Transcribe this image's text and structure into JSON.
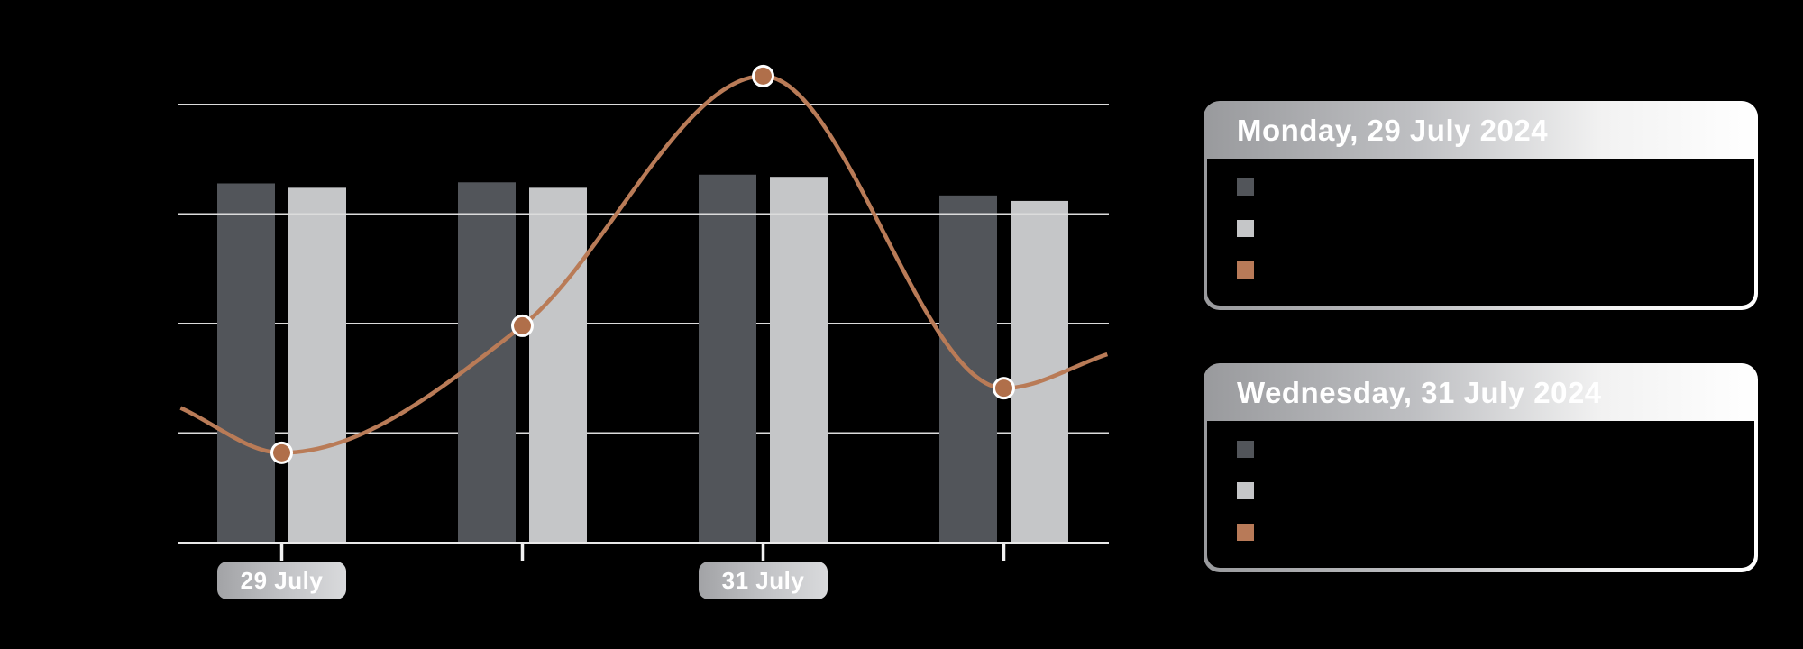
{
  "background": "#000000",
  "chart_data": {
    "type": "combo",
    "title": "",
    "x_tick_labels": [
      "29 July",
      "",
      "31 July",
      ""
    ],
    "value_axis": {
      "unit": "gridline-steps (no numeric labels visible)",
      "baseline": 0,
      "gridlines": [
        1,
        2,
        3,
        4
      ],
      "front_gridline": 3,
      "ylim": [
        0,
        4.6
      ]
    },
    "bar_series": [
      {
        "name": "dark-bars",
        "color": "#52555A",
        "values": [
          3.28,
          3.29,
          3.36,
          3.17
        ]
      },
      {
        "name": "light-bars",
        "color": "#C5C6C8",
        "values": [
          3.24,
          3.24,
          3.34,
          3.12
        ]
      }
    ],
    "line_series": {
      "name": "copper-line",
      "color": "#B97B57",
      "dot_color": "#B06F4A",
      "dot_ring_color": "#FFFFFF",
      "points": [
        {
          "x": 0,
          "v": 0.82
        },
        {
          "x": 1,
          "v": 1.98
        },
        {
          "x": 2,
          "v": 4.26
        },
        {
          "x": 3,
          "v": 1.41
        }
      ],
      "edge_points": [
        {
          "x": -0.42,
          "v": 1.23
        },
        {
          "x": 3.43,
          "v": 1.72
        }
      ]
    },
    "grid_color": "#DCDCDC",
    "axis_color": "#E9E9E9",
    "tick_color": "#F2F2F2",
    "legend_position": "right-cards"
  },
  "x_pills": [
    {
      "label": "29 July",
      "group": 0
    },
    {
      "label": "31 July",
      "group": 2
    }
  ],
  "cards": [
    {
      "title": "Monday, 29 July 2024",
      "legend": [
        {
          "name": "dark-bar-swatch",
          "color": "#52555A",
          "label": ""
        },
        {
          "name": "light-bar-swatch",
          "color": "#C5C6C8",
          "label": ""
        },
        {
          "name": "line-swatch",
          "color": "#B87A58",
          "label": ""
        }
      ]
    },
    {
      "title": "Wednesday, 31 July 2024",
      "legend": [
        {
          "name": "dark-bar-swatch",
          "color": "#52555A",
          "label": ""
        },
        {
          "name": "light-bar-swatch",
          "color": "#C5C6C8",
          "label": ""
        },
        {
          "name": "line-swatch",
          "color": "#B87A58",
          "label": ""
        }
      ]
    }
  ]
}
